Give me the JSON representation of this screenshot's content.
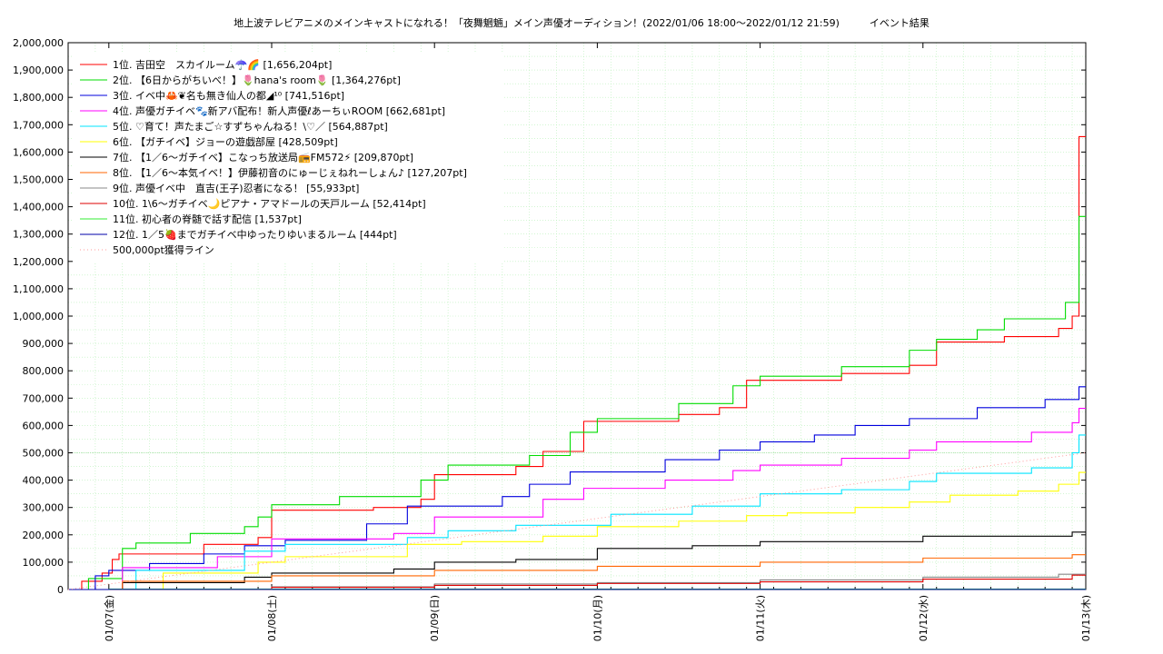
{
  "chart_data": {
    "type": "line",
    "title": "地上波テレビアニメのメインキャストになれる！「夜舞魍魎」メイン声優オーディション！(2022/01/06 18:00〜2022/01/12 21:59)　　　イベント結果",
    "x_ticks": [
      "01/07(金)",
      "01/08(土)",
      "01/09(日)",
      "01/10(月)",
      "01/11(火)",
      "01/12(水)",
      "01/13(木)"
    ],
    "x_domain": [
      "2022-01-06T18:00",
      "2022-01-13T00:00"
    ],
    "ylim": [
      0,
      2000000
    ],
    "y_ticks": [
      0,
      100000,
      200000,
      300000,
      400000,
      500000,
      600000,
      700000,
      800000,
      900000,
      1000000,
      1100000,
      1200000,
      1300000,
      1400000,
      1500000,
      1600000,
      1700000,
      1800000,
      1900000,
      2000000
    ],
    "y_tick_labels": [
      "0",
      "100,000",
      "200,000",
      "300,000",
      "400,000",
      "500,000",
      "600,000",
      "700,000",
      "800,000",
      "900,000",
      "1,000,000",
      "1,100,000",
      "1,200,000",
      "1,300,000",
      "1,400,000",
      "1,500,000",
      "1,600,000",
      "1,700,000",
      "1,800,000",
      "1,900,000",
      "2,000,000"
    ],
    "grid": true,
    "legend_position": "top-left",
    "series": [
      {
        "name": "1位. 吉田空　スカイルーム☂️🌈 [1,656,204pt]",
        "color": "#ff0000",
        "points": [
          [
            "2022-01-06T18:00",
            0
          ],
          [
            "2022-01-06T20:00",
            30000
          ],
          [
            "2022-01-06T23:00",
            60000
          ],
          [
            "2022-01-07T00:30",
            110000
          ],
          [
            "2022-01-07T01:30",
            130000
          ],
          [
            "2022-01-07T12:00",
            130000
          ],
          [
            "2022-01-07T14:00",
            165000
          ],
          [
            "2022-01-07T22:00",
            190000
          ],
          [
            "2022-01-08T00:00",
            290000
          ],
          [
            "2022-01-08T15:00",
            300000
          ],
          [
            "2022-01-08T22:00",
            330000
          ],
          [
            "2022-01-09T00:00",
            420000
          ],
          [
            "2022-01-09T12:00",
            450000
          ],
          [
            "2022-01-09T16:00",
            505000
          ],
          [
            "2022-01-09T22:00",
            615000
          ],
          [
            "2022-01-10T12:00",
            640000
          ],
          [
            "2022-01-10T18:00",
            665000
          ],
          [
            "2022-01-10T22:00",
            765000
          ],
          [
            "2022-01-11T12:00",
            790000
          ],
          [
            "2022-01-11T22:00",
            820000
          ],
          [
            "2022-01-12T02:00",
            905000
          ],
          [
            "2022-01-12T12:00",
            925000
          ],
          [
            "2022-01-12T20:00",
            955000
          ],
          [
            "2022-01-12T22:00",
            1000000
          ],
          [
            "2022-01-12T23:00",
            1656204
          ],
          [
            "2022-01-13T00:00",
            1656204
          ]
        ]
      },
      {
        "name": "2位. 【6日からがちいべ！】🌷hana's room🌷 [1,364,276pt]",
        "color": "#00dd00",
        "points": [
          [
            "2022-01-06T18:00",
            0
          ],
          [
            "2022-01-06T21:00",
            40000
          ],
          [
            "2022-01-07T02:00",
            150000
          ],
          [
            "2022-01-07T04:00",
            170000
          ],
          [
            "2022-01-07T10:00",
            170000
          ],
          [
            "2022-01-07T12:00",
            205000
          ],
          [
            "2022-01-07T20:00",
            230000
          ],
          [
            "2022-01-07T22:00",
            265000
          ],
          [
            "2022-01-08T00:00",
            310000
          ],
          [
            "2022-01-08T10:00",
            340000
          ],
          [
            "2022-01-08T22:00",
            400000
          ],
          [
            "2022-01-09T02:00",
            455000
          ],
          [
            "2022-01-09T14:00",
            490000
          ],
          [
            "2022-01-09T20:00",
            575000
          ],
          [
            "2022-01-10T00:00",
            625000
          ],
          [
            "2022-01-10T12:00",
            680000
          ],
          [
            "2022-01-10T20:00",
            745000
          ],
          [
            "2022-01-11T00:00",
            780000
          ],
          [
            "2022-01-11T12:00",
            815000
          ],
          [
            "2022-01-11T22:00",
            875000
          ],
          [
            "2022-01-12T02:00",
            915000
          ],
          [
            "2022-01-12T08:00",
            950000
          ],
          [
            "2022-01-12T12:00",
            990000
          ],
          [
            "2022-01-12T21:00",
            1050000
          ],
          [
            "2022-01-12T23:00",
            1364276
          ],
          [
            "2022-01-13T00:00",
            1364276
          ]
        ]
      },
      {
        "name": "3位. イベ中🦀❦名も無き仙人の都◢¹⁰ [741,516pt]",
        "color": "#0000dd",
        "points": [
          [
            "2022-01-06T18:00",
            0
          ],
          [
            "2022-01-06T22:00",
            50000
          ],
          [
            "2022-01-07T00:00",
            70000
          ],
          [
            "2022-01-07T06:00",
            95000
          ],
          [
            "2022-01-07T14:00",
            130000
          ],
          [
            "2022-01-07T20:00",
            160000
          ],
          [
            "2022-01-08T02:00",
            180000
          ],
          [
            "2022-01-08T14:00",
            240000
          ],
          [
            "2022-01-08T20:00",
            305000
          ],
          [
            "2022-01-09T10:00",
            340000
          ],
          [
            "2022-01-09T14:00",
            385000
          ],
          [
            "2022-01-09T20:00",
            430000
          ],
          [
            "2022-01-10T10:00",
            475000
          ],
          [
            "2022-01-10T18:00",
            510000
          ],
          [
            "2022-01-11T00:00",
            540000
          ],
          [
            "2022-01-11T08:00",
            565000
          ],
          [
            "2022-01-11T14:00",
            600000
          ],
          [
            "2022-01-11T22:00",
            625000
          ],
          [
            "2022-01-12T08:00",
            665000
          ],
          [
            "2022-01-12T18:00",
            695000
          ],
          [
            "2022-01-12T23:00",
            741516
          ],
          [
            "2022-01-13T00:00",
            741516
          ]
        ]
      },
      {
        "name": "4位. 声優ガチイベ🐾新アバ配布！新人声優ℓあーちぃROOM [662,681pt]",
        "color": "#ff00ff",
        "points": [
          [
            "2022-01-06T18:00",
            0
          ],
          [
            "2022-01-07T02:00",
            80000
          ],
          [
            "2022-01-07T16:00",
            120000
          ],
          [
            "2022-01-08T00:00",
            185000
          ],
          [
            "2022-01-08T18:00",
            205000
          ],
          [
            "2022-01-09T00:00",
            265000
          ],
          [
            "2022-01-09T16:00",
            330000
          ],
          [
            "2022-01-09T22:00",
            370000
          ],
          [
            "2022-01-10T10:00",
            400000
          ],
          [
            "2022-01-10T20:00",
            435000
          ],
          [
            "2022-01-11T00:00",
            455000
          ],
          [
            "2022-01-11T12:00",
            480000
          ],
          [
            "2022-01-11T22:00",
            510000
          ],
          [
            "2022-01-12T02:00",
            540000
          ],
          [
            "2022-01-12T16:00",
            575000
          ],
          [
            "2022-01-12T22:00",
            610000
          ],
          [
            "2022-01-12T23:00",
            662681
          ],
          [
            "2022-01-13T00:00",
            662681
          ]
        ]
      },
      {
        "name": "5位. ♡育て！声たまご☆すずちゃんねる！\\♡／ [564,887pt]",
        "color": "#00e5ff",
        "points": [
          [
            "2022-01-06T18:00",
            0
          ],
          [
            "2022-01-07T04:00",
            70000
          ],
          [
            "2022-01-07T20:00",
            140000
          ],
          [
            "2022-01-08T02:00",
            165000
          ],
          [
            "2022-01-08T20:00",
            190000
          ],
          [
            "2022-01-09T02:00",
            215000
          ],
          [
            "2022-01-09T12:00",
            235000
          ],
          [
            "2022-01-10T02:00",
            275000
          ],
          [
            "2022-01-10T14:00",
            305000
          ],
          [
            "2022-01-11T00:00",
            350000
          ],
          [
            "2022-01-11T12:00",
            365000
          ],
          [
            "2022-01-11T22:00",
            395000
          ],
          [
            "2022-01-12T02:00",
            425000
          ],
          [
            "2022-01-12T16:00",
            445000
          ],
          [
            "2022-01-12T22:00",
            500000
          ],
          [
            "2022-01-12T23:00",
            564887
          ],
          [
            "2022-01-13T00:00",
            564887
          ]
        ]
      },
      {
        "name": "6位. 【ガチイベ】ジョーの遊戯部屋 [428,509pt]",
        "color": "#ffff00",
        "points": [
          [
            "2022-01-06T18:00",
            0
          ],
          [
            "2022-01-07T08:00",
            60000
          ],
          [
            "2022-01-07T22:00",
            100000
          ],
          [
            "2022-01-08T02:00",
            120000
          ],
          [
            "2022-01-08T20:00",
            165000
          ],
          [
            "2022-01-09T04:00",
            175000
          ],
          [
            "2022-01-09T16:00",
            195000
          ],
          [
            "2022-01-10T00:00",
            230000
          ],
          [
            "2022-01-10T12:00",
            250000
          ],
          [
            "2022-01-10T22:00",
            270000
          ],
          [
            "2022-01-11T04:00",
            280000
          ],
          [
            "2022-01-11T14:00",
            300000
          ],
          [
            "2022-01-11T22:00",
            320000
          ],
          [
            "2022-01-12T04:00",
            345000
          ],
          [
            "2022-01-12T14:00",
            360000
          ],
          [
            "2022-01-12T20:00",
            385000
          ],
          [
            "2022-01-12T23:00",
            428509
          ],
          [
            "2022-01-13T00:00",
            428509
          ]
        ]
      },
      {
        "name": "7位. 【1／6〜ガチイベ】こなっち放送局📻FM572⚡ [209,870pt]",
        "color": "#000000",
        "points": [
          [
            "2022-01-06T18:00",
            0
          ],
          [
            "2022-01-07T02:00",
            25000
          ],
          [
            "2022-01-07T20:00",
            45000
          ],
          [
            "2022-01-08T00:00",
            60000
          ],
          [
            "2022-01-08T18:00",
            75000
          ],
          [
            "2022-01-09T00:00",
            100000
          ],
          [
            "2022-01-09T12:00",
            110000
          ],
          [
            "2022-01-10T00:00",
            150000
          ],
          [
            "2022-01-10T14:00",
            160000
          ],
          [
            "2022-01-11T00:00",
            175000
          ],
          [
            "2022-01-12T00:00",
            195000
          ],
          [
            "2022-01-12T22:00",
            209870
          ],
          [
            "2022-01-13T00:00",
            209870
          ]
        ]
      },
      {
        "name": "8位. 【1／6〜本気イベ！】伊藤初音のにゅーじぇねれーしょん♪ [127,207pt]",
        "color": "#ff6600",
        "points": [
          [
            "2022-01-06T18:00",
            0
          ],
          [
            "2022-01-07T02:00",
            30000
          ],
          [
            "2022-01-08T00:00",
            50000
          ],
          [
            "2022-01-09T00:00",
            70000
          ],
          [
            "2022-01-10T00:00",
            85000
          ],
          [
            "2022-01-11T00:00",
            100000
          ],
          [
            "2022-01-12T00:00",
            115000
          ],
          [
            "2022-01-12T22:00",
            127207
          ],
          [
            "2022-01-13T00:00",
            127207
          ]
        ]
      },
      {
        "name": "9位. 声優イベ中　直吉(王子)忍者になる！ [55,933pt]",
        "color": "#888888",
        "points": [
          [
            "2022-01-06T18:00",
            0
          ],
          [
            "2022-01-08T00:00",
            10000
          ],
          [
            "2022-01-09T00:00",
            20000
          ],
          [
            "2022-01-10T00:00",
            25000
          ],
          [
            "2022-01-11T00:00",
            35000
          ],
          [
            "2022-01-12T00:00",
            45000
          ],
          [
            "2022-01-12T20:00",
            55933
          ],
          [
            "2022-01-13T00:00",
            55933
          ]
        ]
      },
      {
        "name": "10位. 1\\6〜ガチイベ🌙ピアナ・アマドールの天戸ルーム [52,414pt]",
        "color": "#dd0000",
        "points": [
          [
            "2022-01-06T18:00",
            0
          ],
          [
            "2022-01-08T00:00",
            8000
          ],
          [
            "2022-01-09T00:00",
            15000
          ],
          [
            "2022-01-10T00:00",
            22000
          ],
          [
            "2022-01-11T00:00",
            28000
          ],
          [
            "2022-01-12T00:00",
            38000
          ],
          [
            "2022-01-12T22:00",
            52414
          ],
          [
            "2022-01-13T00:00",
            52414
          ]
        ]
      },
      {
        "name": "11位. 初心者の脊髄で話す配信 [1,537pt]",
        "color": "#33ee33",
        "points": [
          [
            "2022-01-06T18:00",
            0
          ],
          [
            "2022-01-07T00:00",
            1537
          ],
          [
            "2022-01-13T00:00",
            1537
          ]
        ]
      },
      {
        "name": "12位. 1／5🍓までガチイベ中ゆったりゆいまるルーム [444pt]",
        "color": "#0000aa",
        "points": [
          [
            "2022-01-06T18:00",
            0
          ],
          [
            "2022-01-07T00:00",
            444
          ],
          [
            "2022-01-13T00:00",
            444
          ]
        ]
      },
      {
        "name": "500,000pt獲得ライン",
        "color": "#ff9999",
        "dotted": true,
        "points": [
          [
            "2022-01-06T18:00",
            0
          ],
          [
            "2022-01-13T00:00",
            500000
          ]
        ]
      }
    ]
  }
}
